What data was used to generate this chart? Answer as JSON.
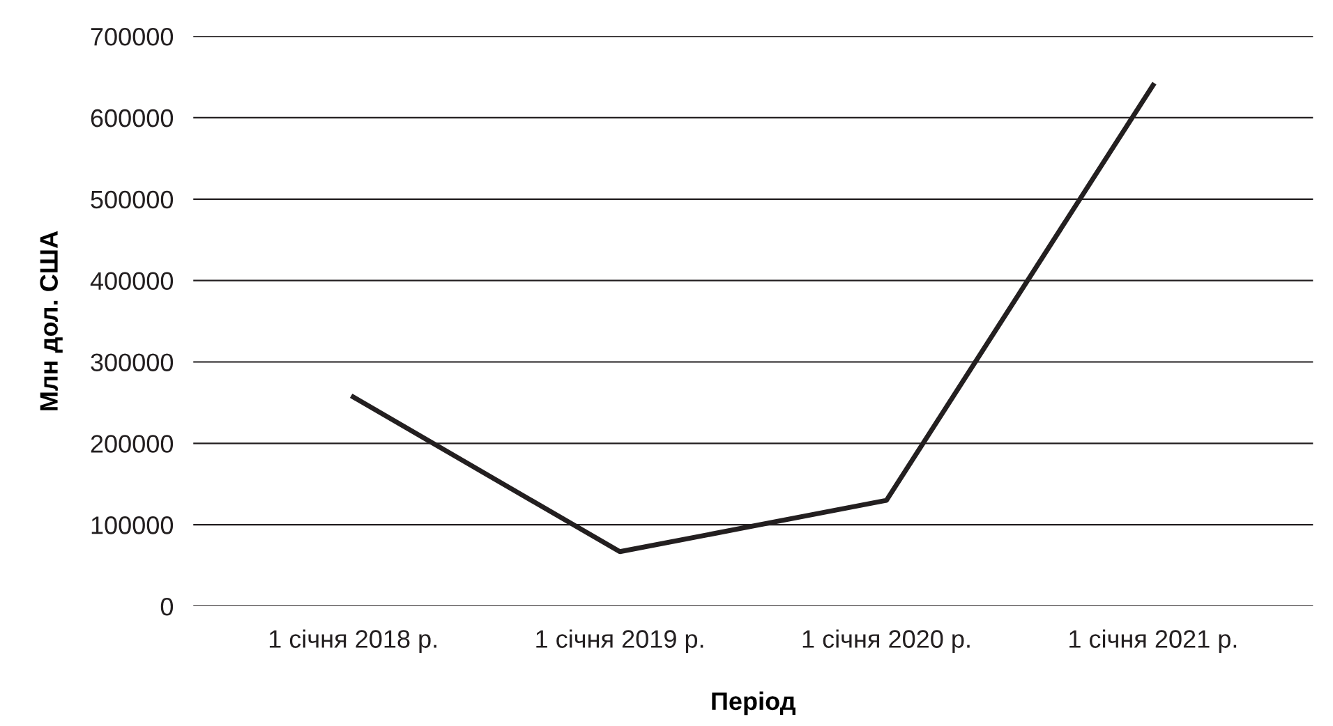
{
  "chart_data": {
    "type": "line",
    "xlabel": "Період",
    "ylabel": "Млн дол. США",
    "categories": [
      "1 січня 2018 р.",
      "1 січня 2019 р.",
      "1 січня 2020 р.",
      "1 січня 2021 р."
    ],
    "series": [
      {
        "color": "#231f20",
        "values": [
          257000,
          67000,
          130000,
          640000
        ]
      }
    ],
    "ylim": [
      0,
      700000
    ],
    "yticks": [
      0,
      100000,
      200000,
      300000,
      400000,
      500000,
      600000,
      700000
    ],
    "grid": "y",
    "legend": false,
    "marker": "none",
    "line_style": "solid"
  }
}
